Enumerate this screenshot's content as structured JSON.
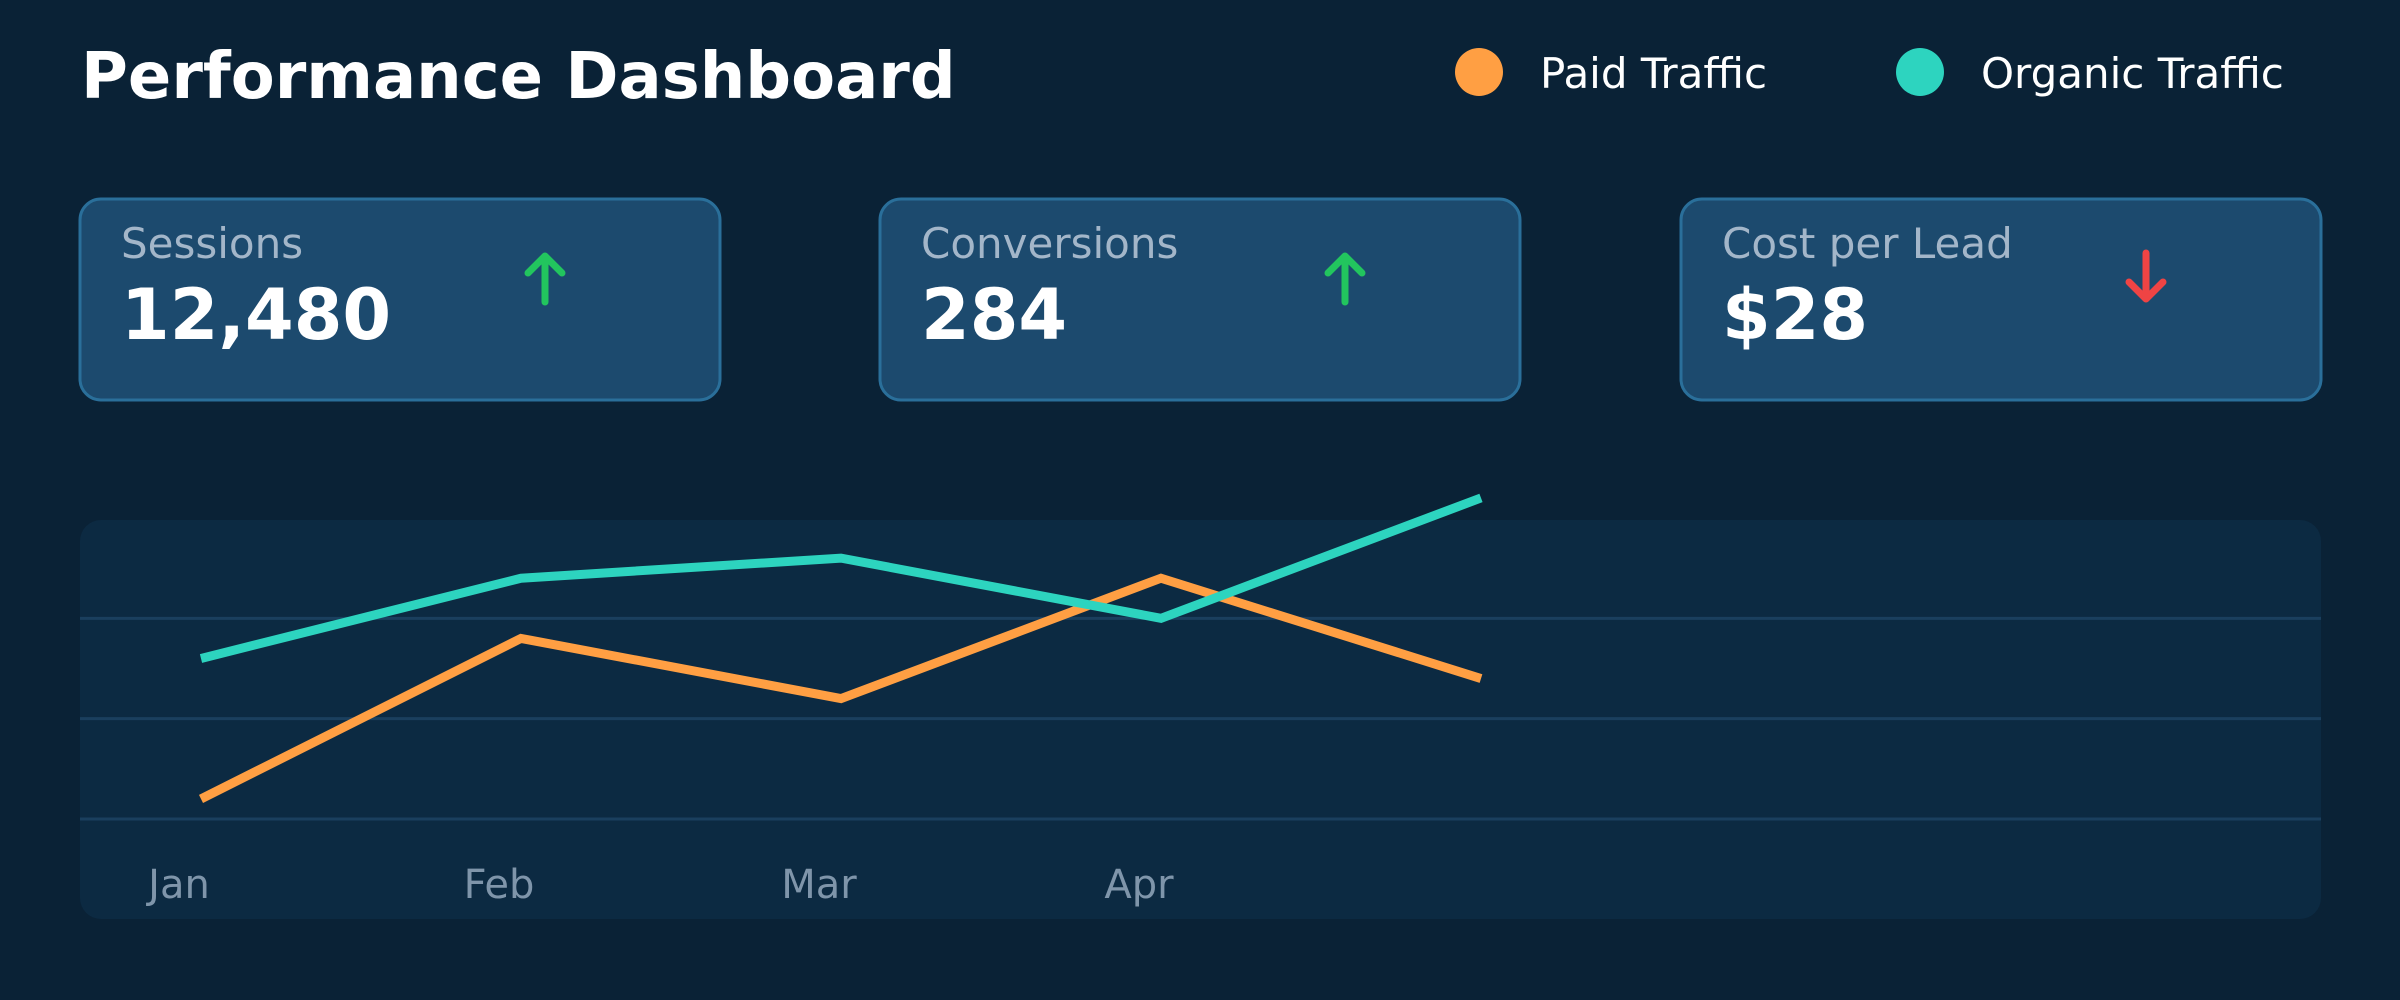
{
  "header": {
    "title": "Performance Dashboard"
  },
  "kpis": [
    {
      "label": "Sessions",
      "value": "12,480",
      "trend": "up"
    },
    {
      "label": "Conversions",
      "value": "284",
      "trend": "up"
    },
    {
      "label": "Cost per Lead",
      "value": "$28",
      "trend": "down"
    }
  ],
  "chart_data": {
    "type": "line",
    "categories": [
      "Jan",
      "Feb",
      "Mar",
      "Apr",
      null
    ],
    "series": [
      {
        "name": "Paid Traffic",
        "color": "#ff9f43",
        "values": [
          0.2,
          1.8,
          1.2,
          2.4,
          1.4
        ]
      },
      {
        "name": "Organic Traffic",
        "color": "#2dd4bf",
        "values": [
          1.6,
          2.4,
          2.6,
          2.0,
          3.2
        ]
      }
    ],
    "ylim": [
      0,
      3
    ],
    "yticks": [
      0,
      1,
      2
    ],
    "grid": true
  }
}
